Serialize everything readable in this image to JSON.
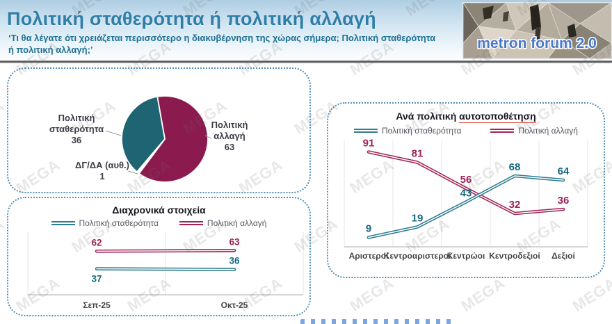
{
  "header": {
    "title": "Πολιτική σταθερότητα ή πολιτική αλλαγή",
    "subtitle": "‘Τι θα λέγατε ότι χρειάζεται περισσότερο η διακυβέρνηση της χώρας σήμερα; Πολιτική σταθερότητα ή πολιτική αλλαγή;’",
    "logo_text": "metron forum 2.0"
  },
  "watermark": {
    "text": "MEGA"
  },
  "colors": {
    "stability_fill": "#1f6473",
    "change_fill": "#8b1a4e",
    "stability_line": "#2e7d92",
    "change_line": "#a22459",
    "stability_label": "#17697f",
    "change_label": "#9c2155",
    "panel_border": "#4e8fb8",
    "title_blue": "#2f7ea8"
  },
  "chart_data": [
    {
      "id": "pie",
      "type": "pie",
      "start_angle_deg": -10,
      "slices": [
        {
          "label": "Πολιτική αλλαγή",
          "label_lines": [
            "Πολιτική",
            "αλλαγή"
          ],
          "value": 63,
          "color": "#8b1a4e"
        },
        {
          "label": "ΔΓ/ΔΑ (αυθ.)",
          "label_lines": [
            "ΔΓ/ΔΑ (αυθ.)"
          ],
          "value": 1,
          "color": "#ffffff"
        },
        {
          "label": "Πολιτική σταθερότητα",
          "label_lines": [
            "Πολιτική",
            "σταθερότητα"
          ],
          "value": 36,
          "color": "#1f6473"
        }
      ]
    },
    {
      "id": "timeseries",
      "type": "line",
      "title": "Διαχρονικά στοιχεία",
      "categories": [
        "Σεπ-25",
        "Οκτ-25"
      ],
      "series": [
        {
          "name": "Πολιτική σταθερότητα",
          "color": "#2e7d92",
          "label_color": "#17697f",
          "values": [
            37,
            36
          ],
          "label_side": [
            "below",
            "above"
          ]
        },
        {
          "name": "Πολιτική αλλαγή",
          "color": "#a22459",
          "label_color": "#9c2155",
          "values": [
            62,
            63
          ],
          "label_side": [
            "above",
            "above"
          ]
        }
      ],
      "ylim": [
        0,
        90
      ],
      "grid": true,
      "legend_position": "top"
    },
    {
      "id": "placement",
      "type": "line",
      "title_prefix": "Ανά πολιτική",
      "title_underlined": "αυτοτοποθέτηση",
      "categories": [
        "Αριστεροί",
        "Κεντροαριστεροί",
        "Κεντρώοι",
        "Κεντροδεξιοί",
        "Δεξιοί"
      ],
      "series": [
        {
          "name": "Πολιτική σταθερότητα",
          "color": "#2e7d92",
          "label_color": "#17697f",
          "values": [
            9,
            19,
            43,
            68,
            64
          ],
          "label_side": [
            "above",
            "above",
            "above",
            "above",
            "above"
          ]
        },
        {
          "name": "Πολιτική αλλαγή",
          "color": "#a22459",
          "label_color": "#9c2155",
          "values": [
            91,
            81,
            56,
            32,
            36
          ],
          "label_side": [
            "above",
            "above",
            "above",
            "above",
            "above"
          ]
        }
      ],
      "ylim": [
        0,
        102
      ],
      "grid": true,
      "legend_position": "top"
    }
  ]
}
